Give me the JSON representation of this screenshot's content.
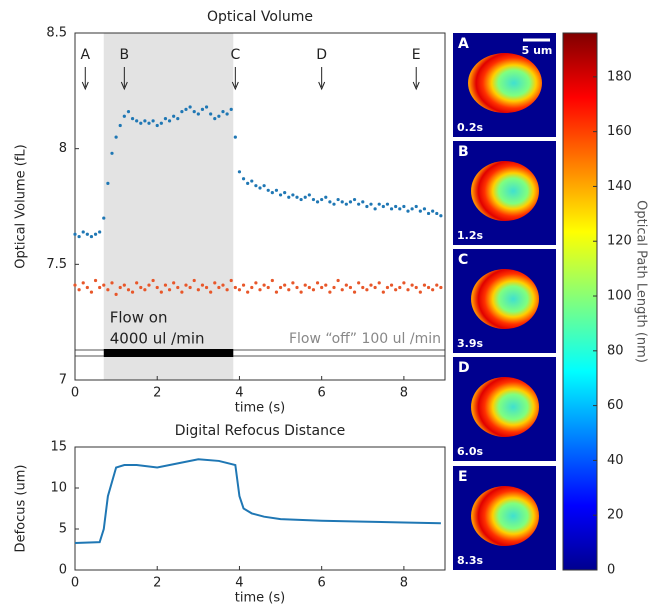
{
  "chart_data": [
    {
      "type": "scatter",
      "title": "Optical Volume",
      "xlabel": "time (s)",
      "ylabel": "Optical Volume (fL)",
      "xlim": [
        0,
        9
      ],
      "ylim": [
        7,
        8.5
      ],
      "xticks": [
        0,
        2,
        4,
        6,
        8
      ],
      "yticks": [
        7,
        7.5,
        8,
        8.5
      ],
      "shaded_region": [
        0.7,
        3.85
      ],
      "shaded_color": "#e3e3e3",
      "flow_bar": [
        0.7,
        3.85
      ],
      "flow_on_label": [
        "Flow on",
        "4000 ul /min"
      ],
      "flow_off_label": "Flow “off” 100 ul /min",
      "markers": [
        {
          "label": "A",
          "x": 0.25
        },
        {
          "label": "B",
          "x": 1.2
        },
        {
          "label": "C",
          "x": 3.9
        },
        {
          "label": "D",
          "x": 6.0
        },
        {
          "label": "E",
          "x": 8.3
        }
      ],
      "x": [
        0,
        0.1,
        0.2,
        0.3,
        0.4,
        0.5,
        0.6,
        0.7,
        0.8,
        0.9,
        1,
        1.1,
        1.2,
        1.3,
        1.4,
        1.5,
        1.6,
        1.7,
        1.8,
        1.9,
        2,
        2.1,
        2.2,
        2.3,
        2.4,
        2.5,
        2.6,
        2.7,
        2.8,
        2.9,
        3,
        3.1,
        3.2,
        3.3,
        3.4,
        3.5,
        3.6,
        3.7,
        3.8,
        3.9,
        4,
        4.1,
        4.2,
        4.3,
        4.4,
        4.5,
        4.6,
        4.7,
        4.8,
        4.9,
        5,
        5.1,
        5.2,
        5.3,
        5.4,
        5.5,
        5.6,
        5.7,
        5.8,
        5.9,
        6,
        6.1,
        6.2,
        6.3,
        6.4,
        6.5,
        6.6,
        6.7,
        6.8,
        6.9,
        7,
        7.1,
        7.2,
        7.3,
        7.4,
        7.5,
        7.6,
        7.7,
        7.8,
        7.9,
        8,
        8.1,
        8.2,
        8.3,
        8.4,
        8.5,
        8.6,
        8.7,
        8.8,
        8.9
      ],
      "series": [
        {
          "color": "#1f77b4",
          "values": [
            7.63,
            7.62,
            7.64,
            7.63,
            7.62,
            7.63,
            7.64,
            7.7,
            7.85,
            7.98,
            8.05,
            8.1,
            8.14,
            8.16,
            8.13,
            8.12,
            8.11,
            8.12,
            8.11,
            8.12,
            8.1,
            8.11,
            8.13,
            8.12,
            8.14,
            8.13,
            8.16,
            8.17,
            8.18,
            8.16,
            8.15,
            8.17,
            8.18,
            8.15,
            8.13,
            8.14,
            8.16,
            8.15,
            8.17,
            8.05,
            7.9,
            7.87,
            7.85,
            7.86,
            7.84,
            7.83,
            7.84,
            7.82,
            7.81,
            7.82,
            7.8,
            7.81,
            7.79,
            7.8,
            7.79,
            7.78,
            7.79,
            7.8,
            7.78,
            7.77,
            7.78,
            7.79,
            7.77,
            7.76,
            7.78,
            7.77,
            7.76,
            7.77,
            7.78,
            7.76,
            7.77,
            7.75,
            7.76,
            7.74,
            7.76,
            7.75,
            7.76,
            7.74,
            7.75,
            7.74,
            7.75,
            7.73,
            7.74,
            7.75,
            7.73,
            7.74,
            7.72,
            7.73,
            7.72,
            7.71
          ]
        },
        {
          "color": "#e8572a",
          "values": [
            7.41,
            7.39,
            7.42,
            7.4,
            7.38,
            7.43,
            7.4,
            7.41,
            7.39,
            7.42,
            7.37,
            7.4,
            7.41,
            7.39,
            7.38,
            7.42,
            7.4,
            7.39,
            7.41,
            7.43,
            7.4,
            7.38,
            7.41,
            7.39,
            7.42,
            7.4,
            7.38,
            7.41,
            7.4,
            7.43,
            7.39,
            7.41,
            7.4,
            7.38,
            7.42,
            7.4,
            7.41,
            7.39,
            7.43,
            7.4,
            7.39,
            7.41,
            7.38,
            7.4,
            7.42,
            7.39,
            7.41,
            7.4,
            7.43,
            7.38,
            7.4,
            7.41,
            7.39,
            7.42,
            7.4,
            7.38,
            7.41,
            7.4,
            7.39,
            7.42,
            7.4,
            7.41,
            7.38,
            7.4,
            7.43,
            7.39,
            7.41,
            7.4,
            7.38,
            7.42,
            7.4,
            7.39,
            7.41,
            7.4,
            7.42,
            7.38,
            7.4,
            7.41,
            7.39,
            7.4,
            7.42,
            7.39,
            7.41,
            7.4,
            7.38,
            7.41,
            7.4,
            7.39,
            7.41,
            7.4
          ]
        }
      ]
    },
    {
      "type": "line",
      "title": "Digital Refocus Distance",
      "xlabel": "time (s)",
      "ylabel": "Defocus (um)",
      "xlim": [
        0,
        9
      ],
      "ylim": [
        0,
        15
      ],
      "xticks": [
        0,
        2,
        4,
        6,
        8
      ],
      "yticks": [
        0,
        5,
        10,
        15
      ],
      "x": [
        0,
        0.6,
        0.7,
        0.8,
        1.0,
        1.2,
        1.5,
        2.0,
        2.5,
        3.0,
        3.5,
        3.9,
        4.0,
        4.1,
        4.3,
        4.6,
        5.0,
        6.0,
        7.0,
        8.0,
        8.9
      ],
      "series": [
        {
          "color": "#1f77b4",
          "values": [
            3.3,
            3.4,
            5,
            9,
            12.5,
            12.8,
            12.8,
            12.5,
            13,
            13.5,
            13.3,
            12.8,
            9,
            7.5,
            6.9,
            6.5,
            6.2,
            6.0,
            5.9,
            5.8,
            5.7
          ]
        }
      ]
    }
  ],
  "images": {
    "scale_bar": "5 um",
    "panels": [
      {
        "label": "A",
        "time": "0.2s"
      },
      {
        "label": "B",
        "time": "1.2s"
      },
      {
        "label": "C",
        "time": "3.9s"
      },
      {
        "label": "D",
        "time": "6.0s"
      },
      {
        "label": "E",
        "time": "8.3s"
      }
    ]
  },
  "colorbar": {
    "label": "Optical Path Length (nm)",
    "lim": [
      0,
      196
    ],
    "ticks": [
      0,
      20,
      40,
      60,
      80,
      100,
      120,
      140,
      160,
      180
    ]
  }
}
